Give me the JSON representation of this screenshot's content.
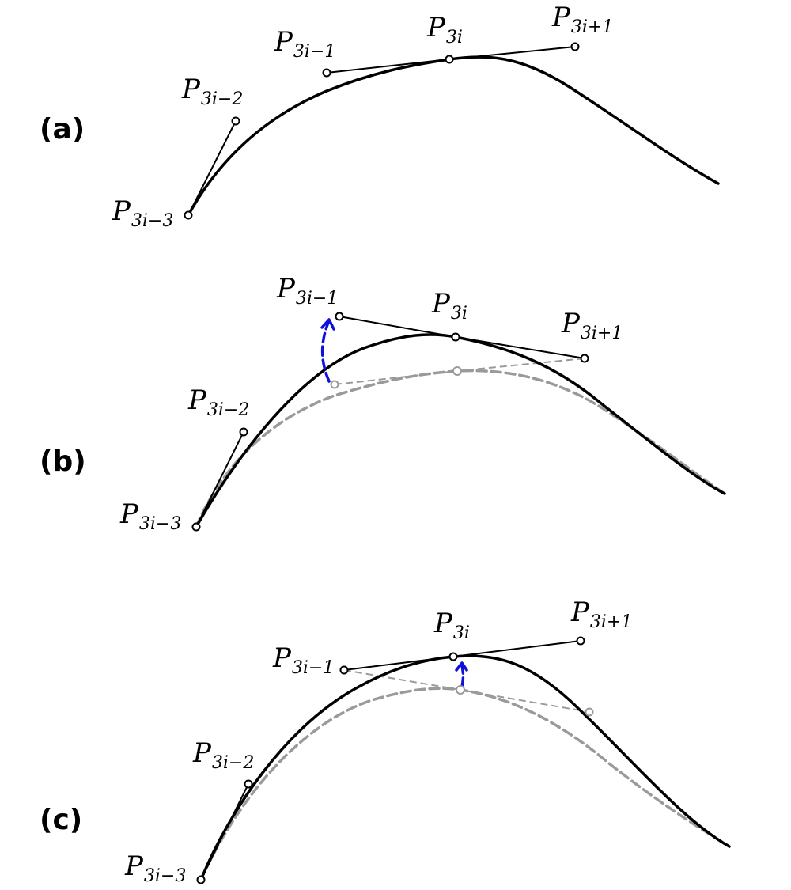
{
  "figure": {
    "panels": [
      {
        "label": "(a)",
        "points": [
          {
            "name": "P",
            "sub": "3i−3"
          },
          {
            "name": "P",
            "sub": "3i−2"
          },
          {
            "name": "P",
            "sub": "3i−1"
          },
          {
            "name": "P",
            "sub": "3i"
          },
          {
            "name": "P",
            "sub": "3i+1"
          }
        ]
      },
      {
        "label": "(b)",
        "points": [
          {
            "name": "P",
            "sub": "3i−3"
          },
          {
            "name": "P",
            "sub": "3i−2"
          },
          {
            "name": "P",
            "sub": "3i−1"
          },
          {
            "name": "P",
            "sub": "3i"
          },
          {
            "name": "P",
            "sub": "3i+1"
          }
        ]
      },
      {
        "label": "(c)",
        "points": [
          {
            "name": "P",
            "sub": "3i−3"
          },
          {
            "name": "P",
            "sub": "3i−2"
          },
          {
            "name": "P",
            "sub": "3i−1"
          },
          {
            "name": "P",
            "sub": "3i"
          },
          {
            "name": "P",
            "sub": "3i+1"
          }
        ]
      }
    ],
    "colors": {
      "curve": "#000000",
      "ghost": "#9a9a9a",
      "move_arrow": "#1010dd",
      "background": "#ffffff"
    }
  }
}
